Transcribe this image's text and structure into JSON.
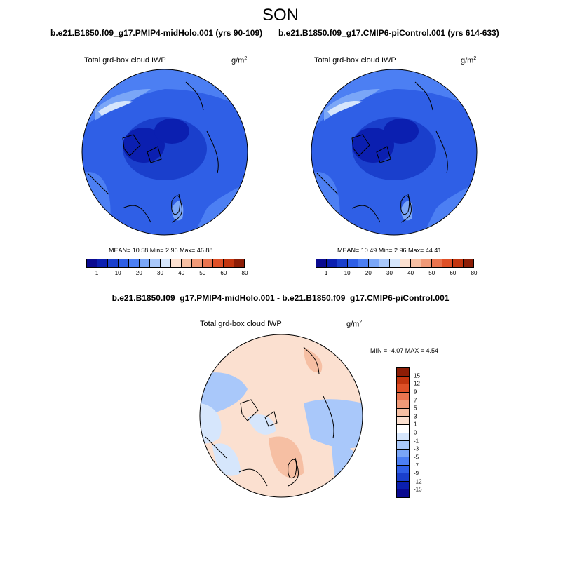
{
  "season": "SON",
  "panels": {
    "left": {
      "case_title": "b.e21.B1850.f09_g17.PMIP4-midHolo.001 (yrs 90-109)",
      "variable": "Total grd-box cloud IWP",
      "units": "g/m",
      "units_exp": "2",
      "stats": "MEAN=  10.58  Min=   2.96  Max=  46.88"
    },
    "right": {
      "case_title": "b.e21.B1850.f09_g17.CMIP6-piControl.001 (yrs 614-633)",
      "variable": "Total grd-box cloud IWP",
      "units": "g/m",
      "units_exp": "2",
      "stats": "MEAN=  10.49  Min=   2.96  Max=  44.41"
    },
    "diff": {
      "case_title": "b.e21.B1850.f09_g17.PMIP4-midHolo.001 - b.e21.B1850.f09_g17.CMIP6-piControl.001",
      "variable": "Total grd-box cloud IWP",
      "units": "g/m",
      "units_exp": "2",
      "stats": "MIN =  -4.07 MAX =   4.54"
    }
  },
  "colorbars": {
    "abs": {
      "labels": [
        "1",
        "10",
        "20",
        "30",
        "40",
        "50",
        "60",
        "80"
      ],
      "colors": [
        "#0a0a90",
        "#0b1fb0",
        "#1a3fcc",
        "#2f5fe6",
        "#4c7ff3",
        "#7aa6f7",
        "#a9c8fa",
        "#d6e6fc",
        "#fbe0d0",
        "#f6bfa3",
        "#f09a78",
        "#e9744f",
        "#df5027",
        "#c2350f",
        "#8c1d06"
      ]
    },
    "diff": {
      "labels": [
        "15",
        "12",
        "9",
        "7",
        "5",
        "3",
        "1",
        "0",
        "-1",
        "-3",
        "-5",
        "-7",
        "-9",
        "-12",
        "-15"
      ],
      "colors": [
        "#8c1d06",
        "#c2350f",
        "#df5027",
        "#e9744f",
        "#f09a78",
        "#f6bfa3",
        "#fbe0d0",
        "#ffffff",
        "#d6e6fc",
        "#a9c8fa",
        "#7aa6f7",
        "#4c7ff3",
        "#2f5fe6",
        "#1a3fcc",
        "#0b1fb0",
        "#0a0a90"
      ]
    }
  }
}
